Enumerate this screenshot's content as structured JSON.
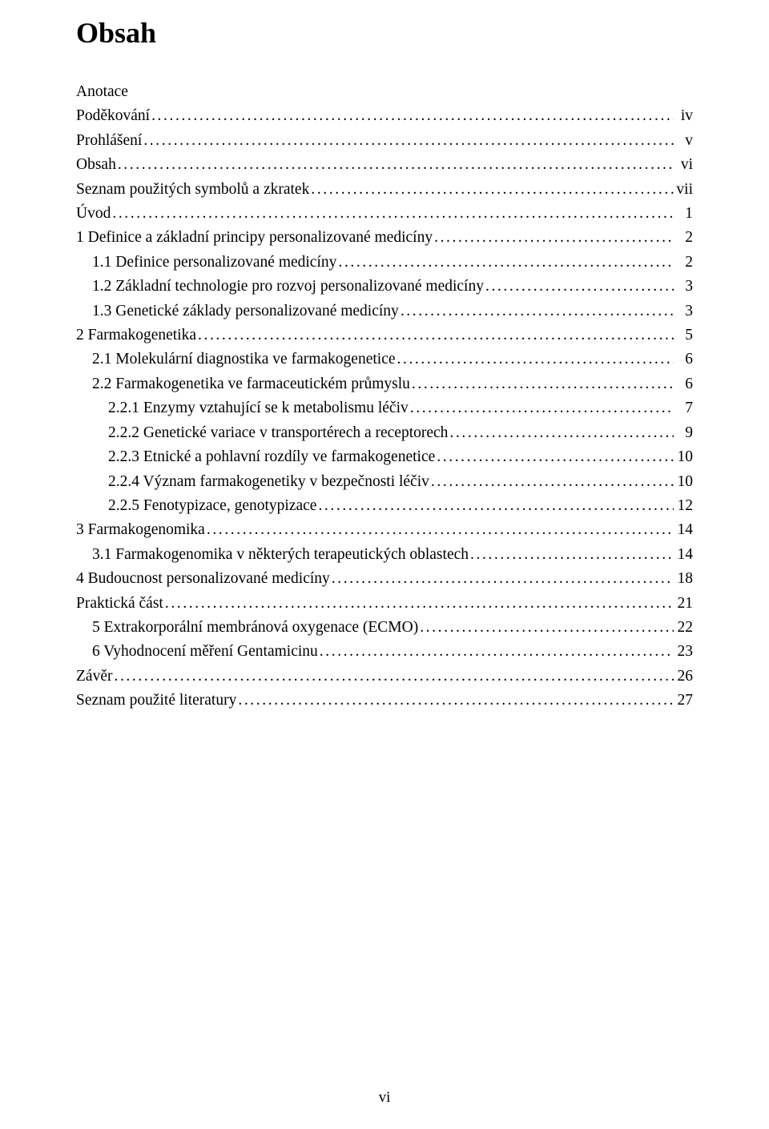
{
  "title": "Obsah",
  "footer_page": "vi",
  "entries": [
    {
      "label": "Anotace",
      "page": "",
      "indent": 0
    },
    {
      "label": "Poděkování",
      "page": "iv",
      "indent": 0
    },
    {
      "label": "Prohlášení",
      "page": "v",
      "indent": 0
    },
    {
      "label": "Obsah",
      "page": "vi",
      "indent": 0
    },
    {
      "label": "Seznam použitých symbolů a zkratek",
      "page": "vii",
      "indent": 0
    },
    {
      "label": "Úvod",
      "page": "1",
      "indent": 0
    },
    {
      "label": "1 Definice a základní principy personalizované medicíny",
      "page": "2",
      "indent": 0
    },
    {
      "label": "1.1 Definice personalizované medicíny",
      "page": "2",
      "indent": 1
    },
    {
      "label": "1.2 Základní technologie pro rozvoj personalizované medicíny",
      "page": "3",
      "indent": 1
    },
    {
      "label": "1.3 Genetické základy personalizované medicíny",
      "page": "3",
      "indent": 1
    },
    {
      "label": "2 Farmakogenetika",
      "page": "5",
      "indent": 0
    },
    {
      "label": "2.1 Molekulární diagnostika ve farmakogenetice",
      "page": "6",
      "indent": 1
    },
    {
      "label": "2.2 Farmakogenetika ve farmaceutickém průmyslu",
      "page": "6",
      "indent": 1
    },
    {
      "label": "2.2.1 Enzymy vztahující se k metabolismu léčiv",
      "page": "7",
      "indent": 2
    },
    {
      "label": "2.2.2 Genetické variace v transportérech a receptorech",
      "page": "9",
      "indent": 2
    },
    {
      "label": "2.2.3 Etnické a pohlavní rozdíly ve farmakogenetice",
      "page": "10",
      "indent": 2
    },
    {
      "label": "2.2.4 Význam farmakogenetiky v bezpečnosti léčiv",
      "page": "10",
      "indent": 2
    },
    {
      "label": "2.2.5 Fenotypizace, genotypizace",
      "page": "12",
      "indent": 2
    },
    {
      "label": "3 Farmakogenomika",
      "page": "14",
      "indent": 0
    },
    {
      "label": "3.1 Farmakogenomika v některých terapeutických oblastech",
      "page": "14",
      "indent": 1
    },
    {
      "label": "4 Budoucnost personalizované medicíny",
      "page": "18",
      "indent": 0
    },
    {
      "label": "Praktická část",
      "page": "21",
      "indent": 0
    },
    {
      "label": "5 Extrakorporální membránová oxygenace (ECMO)",
      "page": "22",
      "indent": 1
    },
    {
      "label": "6 Vyhodnocení měření Gentamicinu",
      "page": "23",
      "indent": 1
    },
    {
      "label": "Závěr",
      "page": "26",
      "indent": 0
    },
    {
      "label": "Seznam použité literatury",
      "page": "27",
      "indent": 0
    }
  ]
}
